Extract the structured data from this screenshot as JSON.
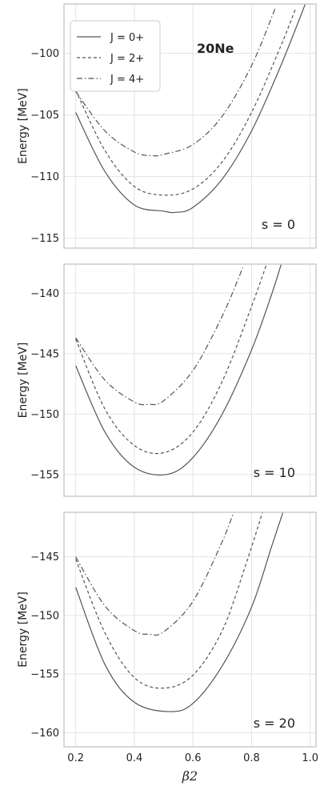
{
  "chart_data": [
    {
      "type": "line",
      "panel_label": "s = 0",
      "annotation": "20Ne",
      "ylabel": "Energy [MeV]",
      "xlabel": "",
      "xlim": [
        0.16,
        1.02
      ],
      "ylim": [
        -115.8,
        -96.0
      ],
      "xticks": [
        0.2,
        0.4,
        0.6,
        0.8,
        1.0
      ],
      "yticks": [
        -115,
        -110,
        -105,
        -100
      ],
      "legend": "top-left",
      "grid": true,
      "series": [
        {
          "name": "J = 0+",
          "style": "solid",
          "points": [
            [
              0.2,
              -104.8
            ],
            [
              0.3,
              -109.6
            ],
            [
              0.4,
              -112.3
            ],
            [
              0.5,
              -112.8
            ],
            [
              0.54,
              -112.9
            ],
            [
              0.6,
              -112.5
            ],
            [
              0.7,
              -110.2
            ],
            [
              0.8,
              -106.3
            ],
            [
              0.9,
              -101.0
            ],
            [
              0.99,
              -95.6
            ]
          ]
        },
        {
          "name": "J = 2+",
          "style": "dashed",
          "points": [
            [
              0.2,
              -103.0
            ],
            [
              0.3,
              -107.9
            ],
            [
              0.4,
              -110.8
            ],
            [
              0.5,
              -111.5
            ],
            [
              0.6,
              -111.0
            ],
            [
              0.7,
              -108.8
            ],
            [
              0.8,
              -104.8
            ],
            [
              0.9,
              -99.4
            ],
            [
              0.95,
              -96.4
            ]
          ]
        },
        {
          "name": "J = 4+",
          "style": "dashdot",
          "points": [
            [
              0.2,
              -103.1
            ],
            [
              0.3,
              -106.3
            ],
            [
              0.4,
              -108.0
            ],
            [
              0.46,
              -108.3
            ],
            [
              0.5,
              -108.2
            ],
            [
              0.6,
              -107.4
            ],
            [
              0.7,
              -105.1
            ],
            [
              0.8,
              -101.0
            ],
            [
              0.88,
              -96.4
            ]
          ]
        }
      ]
    },
    {
      "type": "line",
      "panel_label": "s = 10",
      "ylabel": "Energy [MeV]",
      "xlabel": "",
      "xlim": [
        0.16,
        1.02
      ],
      "ylim": [
        -156.8,
        -137.6
      ],
      "xticks": [
        0.2,
        0.4,
        0.6,
        0.8,
        1.0
      ],
      "yticks": [
        -155,
        -150,
        -145,
        -140
      ],
      "grid": true,
      "series": [
        {
          "name": "J = 0+",
          "style": "solid",
          "points": [
            [
              0.2,
              -146.0
            ],
            [
              0.3,
              -151.5
            ],
            [
              0.4,
              -154.4
            ],
            [
              0.51,
              -155.0
            ],
            [
              0.6,
              -153.6
            ],
            [
              0.7,
              -150.0
            ],
            [
              0.8,
              -144.7
            ],
            [
              0.87,
              -140.0
            ],
            [
              0.91,
              -136.9
            ]
          ]
        },
        {
          "name": "J = 2+",
          "style": "dashed",
          "points": [
            [
              0.2,
              -143.8
            ],
            [
              0.3,
              -149.6
            ],
            [
              0.4,
              -152.6
            ],
            [
              0.5,
              -153.2
            ],
            [
              0.6,
              -151.5
            ],
            [
              0.7,
              -147.3
            ],
            [
              0.8,
              -141.1
            ],
            [
              0.86,
              -137.0
            ]
          ]
        },
        {
          "name": "J = 4+",
          "style": "dashdot",
          "points": [
            [
              0.2,
              -143.7
            ],
            [
              0.3,
              -147.2
            ],
            [
              0.4,
              -149.0
            ],
            [
              0.45,
              -149.2
            ],
            [
              0.5,
              -148.9
            ],
            [
              0.6,
              -146.4
            ],
            [
              0.7,
              -141.9
            ],
            [
              0.77,
              -137.9
            ]
          ]
        }
      ]
    },
    {
      "type": "line",
      "panel_label": "s = 20",
      "ylabel": "Energy [MeV]",
      "xlabel": "β2",
      "xlim": [
        0.16,
        1.02
      ],
      "ylim": [
        -161.2,
        -141.2
      ],
      "xticks": [
        0.2,
        0.4,
        0.6,
        0.8,
        1.0
      ],
      "yticks": [
        -160,
        -155,
        -150,
        -145
      ],
      "grid": true,
      "series": [
        {
          "name": "J = 0+",
          "style": "solid",
          "points": [
            [
              0.2,
              -147.6
            ],
            [
              0.3,
              -154.2
            ],
            [
              0.4,
              -157.4
            ],
            [
              0.52,
              -158.2
            ],
            [
              0.6,
              -157.5
            ],
            [
              0.7,
              -154.3
            ],
            [
              0.8,
              -149.3
            ],
            [
              0.87,
              -144.0
            ],
            [
              0.91,
              -141.0
            ]
          ]
        },
        {
          "name": "J = 2+",
          "style": "dashed",
          "points": [
            [
              0.2,
              -145.2
            ],
            [
              0.3,
              -151.5
            ],
            [
              0.4,
              -155.3
            ],
            [
              0.5,
              -156.2
            ],
            [
              0.6,
              -155.1
            ],
            [
              0.7,
              -151.3
            ],
            [
              0.78,
              -145.7
            ],
            [
              0.84,
              -141.0
            ]
          ]
        },
        {
          "name": "J = 4+",
          "style": "dashdot",
          "points": [
            [
              0.2,
              -145.0
            ],
            [
              0.3,
              -149.2
            ],
            [
              0.4,
              -151.3
            ],
            [
              0.45,
              -151.6
            ],
            [
              0.5,
              -151.4
            ],
            [
              0.6,
              -148.8
            ],
            [
              0.7,
              -143.7
            ],
            [
              0.74,
              -141.1
            ]
          ]
        }
      ]
    }
  ]
}
